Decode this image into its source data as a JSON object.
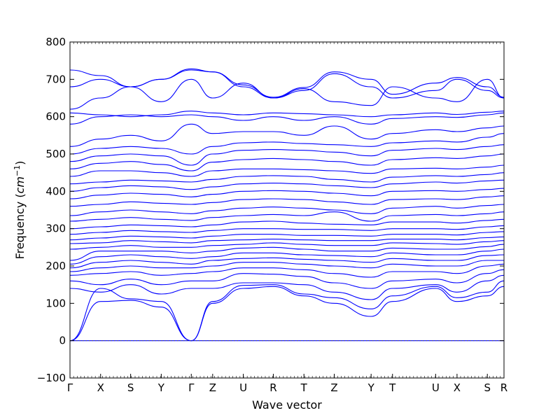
{
  "chart_data": {
    "type": "line",
    "xlabel": "Wave vector",
    "ylabel_main": "Frequency (",
    "ylabel_unit": "cm",
    "ylabel_exp": "−1",
    "ylabel_close": ")",
    "ylim": [
      -100,
      800
    ],
    "yticks": [
      -100,
      0,
      100,
      200,
      300,
      400,
      500,
      600,
      700,
      800
    ],
    "xlim": [
      0,
      14.6
    ],
    "xticks": [
      {
        "label": "Γ",
        "x": 0.0
      },
      {
        "label": "X",
        "x": 1.03
      },
      {
        "label": "S",
        "x": 2.04
      },
      {
        "label": "Y",
        "x": 3.07
      },
      {
        "label": "Γ",
        "x": 4.08
      },
      {
        "label": "Z",
        "x": 4.8
      },
      {
        "label": "U",
        "x": 5.83
      },
      {
        "label": "R",
        "x": 6.84
      },
      {
        "label": "T",
        "x": 7.87
      },
      {
        "label": "Z",
        "x": 8.89
      },
      {
        "label": "Y",
        "x": 10.13
      },
      {
        "label": "T",
        "x": 10.85
      },
      {
        "label": "U",
        "x": 12.3
      },
      {
        "label": "X",
        "x": 13.02
      },
      {
        "label": "S",
        "x": 14.04
      },
      {
        "label": "R",
        "x": 14.6
      }
    ],
    "zero_line": true,
    "line_color": "#0000ff",
    "band_nodes": [
      [
        0,
        0,
        0,
        0,
        0,
        0,
        0,
        0,
        0,
        0,
        0,
        0,
        0,
        0,
        0,
        0
      ],
      [
        0,
        105,
        108,
        90,
        0,
        100,
        140,
        145,
        120,
        100,
        65,
        105,
        140,
        105,
        120,
        145
      ],
      [
        0,
        140,
        112,
        105,
        0,
        105,
        148,
        150,
        125,
        115,
        85,
        120,
        145,
        115,
        130,
        160
      ],
      [
        140,
        130,
        150,
        125,
        140,
        140,
        155,
        155,
        150,
        130,
        110,
        140,
        150,
        130,
        160,
        175
      ],
      [
        160,
        150,
        165,
        150,
        160,
        160,
        180,
        178,
        172,
        155,
        140,
        160,
        165,
        155,
        180,
        190
      ],
      [
        175,
        180,
        185,
        175,
        180,
        185,
        195,
        195,
        190,
        180,
        170,
        185,
        185,
        180,
        200,
        205
      ],
      [
        185,
        195,
        200,
        195,
        195,
        200,
        210,
        210,
        205,
        200,
        195,
        205,
        200,
        200,
        215,
        215
      ],
      [
        195,
        210,
        215,
        210,
        205,
        215,
        220,
        222,
        218,
        215,
        210,
        220,
        215,
        215,
        228,
        230
      ],
      [
        205,
        225,
        230,
        225,
        220,
        225,
        235,
        235,
        230,
        228,
        225,
        235,
        230,
        230,
        240,
        245
      ],
      [
        215,
        240,
        240,
        240,
        235,
        240,
        248,
        250,
        245,
        240,
        240,
        248,
        245,
        245,
        252,
        258
      ],
      [
        245,
        250,
        255,
        250,
        250,
        255,
        258,
        262,
        258,
        255,
        255,
        262,
        260,
        258,
        265,
        268
      ],
      [
        260,
        262,
        268,
        265,
        262,
        268,
        270,
        272,
        270,
        268,
        268,
        272,
        272,
        270,
        276,
        278
      ],
      [
        270,
        275,
        280,
        278,
        275,
        280,
        285,
        285,
        282,
        282,
        280,
        285,
        285,
        283,
        290,
        292
      ],
      [
        285,
        290,
        295,
        292,
        290,
        295,
        300,
        300,
        298,
        298,
        295,
        300,
        300,
        298,
        305,
        308
      ],
      [
        300,
        305,
        310,
        308,
        305,
        310,
        318,
        320,
        315,
        312,
        310,
        318,
        318,
        315,
        322,
        325
      ],
      [
        320,
        325,
        330,
        325,
        322,
        330,
        335,
        338,
        335,
        345,
        320,
        335,
        338,
        335,
        340,
        345
      ],
      [
        335,
        345,
        350,
        345,
        340,
        348,
        355,
        358,
        355,
        350,
        340,
        355,
        360,
        355,
        362,
        365
      ],
      [
        360,
        365,
        372,
        368,
        365,
        370,
        378,
        380,
        378,
        372,
        365,
        378,
        380,
        378,
        385,
        388
      ],
      [
        380,
        390,
        395,
        392,
        385,
        392,
        400,
        402,
        400,
        395,
        388,
        400,
        402,
        400,
        405,
        408
      ],
      [
        400,
        410,
        415,
        412,
        405,
        412,
        420,
        422,
        420,
        415,
        410,
        420,
        425,
        422,
        428,
        430
      ],
      [
        420,
        425,
        430,
        428,
        425,
        432,
        440,
        442,
        440,
        432,
        425,
        438,
        442,
        440,
        445,
        450
      ],
      [
        440,
        455,
        455,
        450,
        440,
        455,
        460,
        460,
        458,
        455,
        448,
        460,
        462,
        460,
        465,
        470
      ],
      [
        460,
        475,
        480,
        472,
        455,
        478,
        485,
        488,
        485,
        480,
        470,
        485,
        490,
        488,
        495,
        500
      ],
      [
        480,
        495,
        500,
        495,
        470,
        500,
        510,
        512,
        510,
        505,
        495,
        510,
        515,
        512,
        520,
        525
      ],
      [
        500,
        515,
        520,
        515,
        500,
        520,
        530,
        532,
        528,
        525,
        520,
        530,
        535,
        532,
        545,
        555
      ],
      [
        520,
        540,
        550,
        535,
        580,
        555,
        560,
        560,
        550,
        575,
        540,
        555,
        565,
        560,
        570,
        575
      ],
      [
        580,
        600,
        605,
        600,
        605,
        600,
        590,
        600,
        590,
        600,
        580,
        595,
        600,
        598,
        605,
        610
      ],
      [
        610,
        605,
        600,
        605,
        615,
        610,
        605,
        610,
        608,
        605,
        600,
        605,
        610,
        606,
        612,
        615
      ],
      [
        620,
        650,
        680,
        640,
        700,
        650,
        690,
        650,
        675,
        640,
        630,
        680,
        650,
        640,
        700,
        650
      ],
      [
        680,
        700,
        680,
        700,
        725,
        720,
        680,
        650,
        670,
        715,
        680,
        650,
        670,
        700,
        670,
        650
      ],
      [
        725,
        710,
        680,
        700,
        728,
        720,
        685,
        652,
        678,
        720,
        700,
        660,
        690,
        705,
        680,
        652
      ]
    ]
  }
}
